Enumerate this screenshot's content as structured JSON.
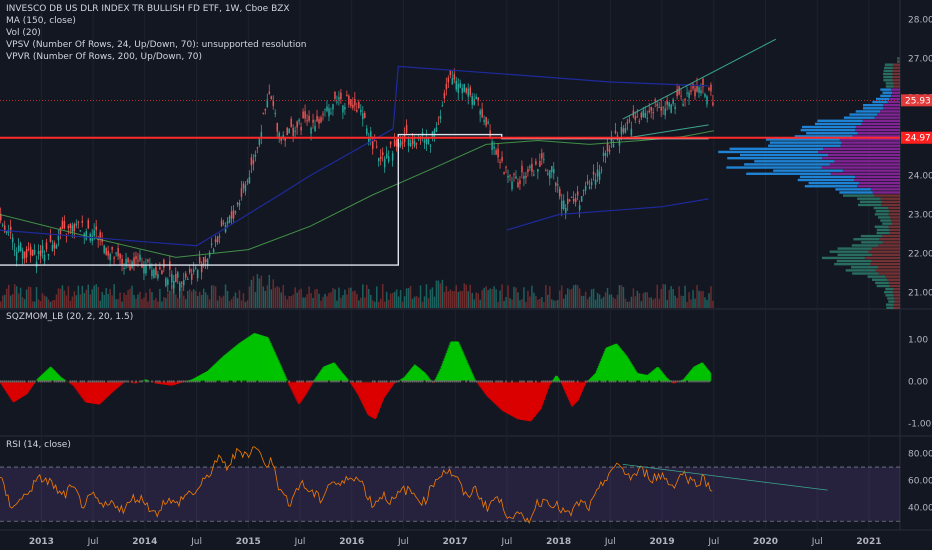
{
  "header": {
    "title": "INVESCO DB US DLR INDEX TR BULLISH FD ETF, 1W, Cboe BZX",
    "indicators": [
      "MA (150, close)",
      "Vol (20)",
      "VPSV (Number Of Rows, 24, Up/Down, 70): unsupported resolution",
      "VPVR (Number Of Rows, 200, Up/Down, 70)"
    ]
  },
  "panes": {
    "squeeze_title": "SQZMOM_LB (20, 2, 20, 1.5)",
    "rsi_title": "RSI (14, close)"
  },
  "price_tags": {
    "last": "25.93",
    "line": "24.97"
  },
  "colors": {
    "background": "#131722",
    "up": "#26a69a",
    "down": "#ef5350",
    "red_line": "#ff2a2a",
    "ma": "#4caf50",
    "vpvr_up": "#2196f3",
    "vpvr_down": "#9c27b0",
    "rsi": "#f57c00",
    "rsi_band": "#7e57c2",
    "sqz_pos": "#00c800",
    "sqz_neg": "#e00000"
  },
  "chart_data": [
    {
      "type": "candlestick",
      "title": "INVESCO DB US DLR INDEX TR BULLISH FD ETF",
      "timeframe": "1W",
      "y_ticks": [
        "28.00",
        "27.00",
        "26.00",
        "25.00",
        "24.00",
        "23.00",
        "22.00",
        "21.00"
      ],
      "ylim": [
        20.6,
        28.3
      ],
      "x_ticks": [
        "2013",
        "Jul",
        "2014",
        "Jul",
        "2015",
        "Jul",
        "2016",
        "Jul",
        "2017",
        "Jul",
        "2018",
        "Jul",
        "2019",
        "Jul",
        "2020",
        "Jul",
        "2021"
      ],
      "x_tick_years": [
        2013.0,
        2013.5,
        2014.0,
        2014.5,
        2015.0,
        2015.5,
        2016.0,
        2016.5,
        2017.0,
        2017.5,
        2018.0,
        2018.5,
        2019.0,
        2019.5,
        2020.0,
        2020.5,
        2021.0
      ],
      "xlim": [
        2012.6,
        2021.3
      ],
      "close_path": [
        [
          2012.6,
          22.7
        ],
        [
          2012.75,
          22.2
        ],
        [
          2012.9,
          21.9
        ],
        [
          2013.05,
          22.1
        ],
        [
          2013.2,
          22.5
        ],
        [
          2013.35,
          22.7
        ],
        [
          2013.5,
          22.6
        ],
        [
          2013.65,
          22.0
        ],
        [
          2013.8,
          21.7
        ],
        [
          2013.95,
          21.8
        ],
        [
          2014.1,
          21.6
        ],
        [
          2014.25,
          21.4
        ],
        [
          2014.4,
          21.4
        ],
        [
          2014.55,
          21.7
        ],
        [
          2014.7,
          22.4
        ],
        [
          2014.85,
          23.0
        ],
        [
          2015.0,
          24.0
        ],
        [
          2015.1,
          25.0
        ],
        [
          2015.2,
          26.1
        ],
        [
          2015.3,
          25.0
        ],
        [
          2015.45,
          25.2
        ],
        [
          2015.55,
          25.4
        ],
        [
          2015.7,
          25.4
        ],
        [
          2015.85,
          26.0
        ],
        [
          2015.95,
          25.9
        ],
        [
          2016.1,
          25.5
        ],
        [
          2016.25,
          24.5
        ],
        [
          2016.4,
          24.7
        ],
        [
          2016.55,
          25.0
        ],
        [
          2016.75,
          24.9
        ],
        [
          2016.85,
          25.6
        ],
        [
          2016.95,
          26.5
        ],
        [
          2017.05,
          26.4
        ],
        [
          2017.15,
          26.1
        ],
        [
          2017.3,
          25.4
        ],
        [
          2017.45,
          24.2
        ],
        [
          2017.6,
          23.8
        ],
        [
          2017.7,
          24.1
        ],
        [
          2017.85,
          24.3
        ],
        [
          2017.95,
          24.0
        ],
        [
          2018.05,
          23.3
        ],
        [
          2018.2,
          23.4
        ],
        [
          2018.35,
          24.0
        ],
        [
          2018.5,
          24.8
        ],
        [
          2018.65,
          25.3
        ],
        [
          2018.8,
          25.5
        ],
        [
          2018.95,
          25.8
        ],
        [
          2019.1,
          25.8
        ],
        [
          2019.25,
          26.1
        ],
        [
          2019.4,
          26.2
        ],
        [
          2019.5,
          25.9
        ]
      ],
      "ma150_path": [
        [
          2012.6,
          23.0
        ],
        [
          2013.5,
          22.4
        ],
        [
          2014.3,
          21.9
        ],
        [
          2015.0,
          22.1
        ],
        [
          2015.6,
          22.7
        ],
        [
          2016.2,
          23.5
        ],
        [
          2016.8,
          24.2
        ],
        [
          2017.3,
          24.8
        ],
        [
          2017.8,
          24.9
        ],
        [
          2018.3,
          24.8
        ],
        [
          2018.8,
          24.9
        ],
        [
          2019.2,
          25.0
        ],
        [
          2019.5,
          25.15
        ]
      ],
      "support_line": 24.97,
      "last_close": 25.93
    },
    {
      "type": "bar",
      "title": "SQZMOM_LB (20, 2, 20, 1.5)",
      "y_ticks": [
        "1.00",
        "0.00",
        "-1.00"
      ],
      "ylim": [
        -1.25,
        1.65
      ],
      "momentum_path": [
        [
          2012.6,
          -0.05
        ],
        [
          2012.72,
          -0.5
        ],
        [
          2012.85,
          -0.3
        ],
        [
          2012.95,
          0.05
        ],
        [
          2013.08,
          0.35
        ],
        [
          2013.18,
          0.1
        ],
        [
          2013.3,
          -0.1
        ],
        [
          2013.42,
          -0.5
        ],
        [
          2013.55,
          -0.55
        ],
        [
          2013.68,
          -0.25
        ],
        [
          2013.8,
          0.0
        ],
        [
          2013.9,
          -0.05
        ],
        [
          2014.0,
          0.05
        ],
        [
          2014.1,
          -0.05
        ],
        [
          2014.25,
          -0.1
        ],
        [
          2014.45,
          0.05
        ],
        [
          2014.6,
          0.25
        ],
        [
          2014.75,
          0.6
        ],
        [
          2014.9,
          0.9
        ],
        [
          2015.05,
          1.15
        ],
        [
          2015.18,
          1.05
        ],
        [
          2015.3,
          0.4
        ],
        [
          2015.38,
          -0.05
        ],
        [
          2015.48,
          -0.55
        ],
        [
          2015.55,
          -0.3
        ],
        [
          2015.62,
          0.0
        ],
        [
          2015.72,
          0.35
        ],
        [
          2015.82,
          0.45
        ],
        [
          2015.9,
          0.2
        ],
        [
          2015.97,
          0.0
        ],
        [
          2016.05,
          -0.3
        ],
        [
          2016.15,
          -0.8
        ],
        [
          2016.22,
          -0.9
        ],
        [
          2016.3,
          -0.4
        ],
        [
          2016.4,
          -0.05
        ],
        [
          2016.5,
          0.1
        ],
        [
          2016.6,
          0.4
        ],
        [
          2016.7,
          0.2
        ],
        [
          2016.78,
          -0.05
        ],
        [
          2016.85,
          0.3
        ],
        [
          2016.95,
          0.95
        ],
        [
          2017.02,
          0.95
        ],
        [
          2017.1,
          0.5
        ],
        [
          2017.18,
          0.05
        ],
        [
          2017.3,
          -0.35
        ],
        [
          2017.45,
          -0.7
        ],
        [
          2017.6,
          -0.9
        ],
        [
          2017.72,
          -0.95
        ],
        [
          2017.82,
          -0.65
        ],
        [
          2017.9,
          -0.1
        ],
        [
          2017.97,
          0.15
        ],
        [
          2018.02,
          -0.05
        ],
        [
          2018.12,
          -0.6
        ],
        [
          2018.18,
          -0.45
        ],
        [
          2018.25,
          -0.05
        ],
        [
          2018.35,
          0.2
        ],
        [
          2018.45,
          0.8
        ],
        [
          2018.55,
          0.9
        ],
        [
          2018.65,
          0.6
        ],
        [
          2018.75,
          0.2
        ],
        [
          2018.85,
          0.15
        ],
        [
          2018.95,
          0.35
        ],
        [
          2019.03,
          0.1
        ],
        [
          2019.1,
          -0.05
        ],
        [
          2019.2,
          0.05
        ],
        [
          2019.3,
          0.35
        ],
        [
          2019.38,
          0.45
        ],
        [
          2019.46,
          0.2
        ]
      ]
    },
    {
      "type": "line",
      "title": "RSI (14, close)",
      "y_ticks": [
        "80.00",
        "60.00",
        "40.00"
      ],
      "ylim": [
        25,
        90
      ],
      "overbought": 70,
      "oversold": 30,
      "rsi_path": [
        [
          2012.6,
          62
        ],
        [
          2012.7,
          42
        ],
        [
          2012.8,
          45
        ],
        [
          2012.9,
          55
        ],
        [
          2013.0,
          62
        ],
        [
          2013.1,
          58
        ],
        [
          2013.2,
          48
        ],
        [
          2013.3,
          55
        ],
        [
          2013.4,
          42
        ],
        [
          2013.5,
          48
        ],
        [
          2013.6,
          40
        ],
        [
          2013.7,
          44
        ],
        [
          2013.8,
          38
        ],
        [
          2013.9,
          48
        ],
        [
          2014.0,
          45
        ],
        [
          2014.1,
          35
        ],
        [
          2014.2,
          46
        ],
        [
          2014.3,
          42
        ],
        [
          2014.4,
          50
        ],
        [
          2014.5,
          52
        ],
        [
          2014.6,
          62
        ],
        [
          2014.7,
          76
        ],
        [
          2014.8,
          70
        ],
        [
          2014.9,
          82
        ],
        [
          2015.0,
          80
        ],
        [
          2015.08,
          86
        ],
        [
          2015.15,
          72
        ],
        [
          2015.25,
          75
        ],
        [
          2015.3,
          52
        ],
        [
          2015.4,
          44
        ],
        [
          2015.5,
          58
        ],
        [
          2015.6,
          52
        ],
        [
          2015.7,
          46
        ],
        [
          2015.8,
          60
        ],
        [
          2015.9,
          56
        ],
        [
          2016.0,
          65
        ],
        [
          2016.1,
          58
        ],
        [
          2016.2,
          42
        ],
        [
          2016.3,
          50
        ],
        [
          2016.4,
          44
        ],
        [
          2016.5,
          54
        ],
        [
          2016.6,
          50
        ],
        [
          2016.7,
          44
        ],
        [
          2016.8,
          60
        ],
        [
          2016.9,
          68
        ],
        [
          2017.0,
          64
        ],
        [
          2017.1,
          48
        ],
        [
          2017.2,
          54
        ],
        [
          2017.3,
          40
        ],
        [
          2017.4,
          48
        ],
        [
          2017.5,
          36
        ],
        [
          2017.6,
          34
        ],
        [
          2017.7,
          30
        ],
        [
          2017.8,
          44
        ],
        [
          2017.9,
          46
        ],
        [
          2018.0,
          40
        ],
        [
          2018.1,
          34
        ],
        [
          2018.2,
          44
        ],
        [
          2018.3,
          40
        ],
        [
          2018.4,
          54
        ],
        [
          2018.5,
          68
        ],
        [
          2018.6,
          70
        ],
        [
          2018.7,
          62
        ],
        [
          2018.8,
          68
        ],
        [
          2018.9,
          62
        ],
        [
          2019.0,
          64
        ],
        [
          2019.1,
          56
        ],
        [
          2019.2,
          66
        ],
        [
          2019.3,
          58
        ],
        [
          2019.4,
          62
        ],
        [
          2019.5,
          50
        ]
      ]
    }
  ]
}
